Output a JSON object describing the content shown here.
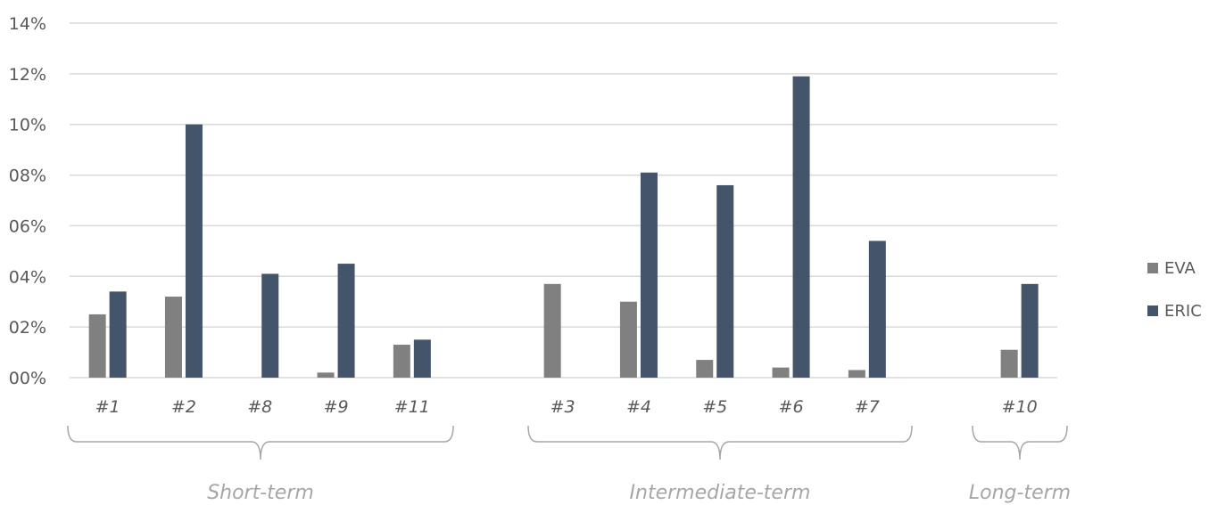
{
  "chart_data": {
    "type": "bar",
    "title": "",
    "xlabel": "",
    "ylabel": "",
    "ylim": [
      0,
      0.14
    ],
    "y_tick_values": [
      0,
      0.02,
      0.04,
      0.06,
      0.08,
      0.1,
      0.12,
      0.14
    ],
    "y_tick_labels": [
      "00%",
      "02%",
      "04%",
      "06%",
      "08%",
      "10%",
      "12%",
      "14%"
    ],
    "grid": true,
    "legend_position": "right",
    "categories": [
      "#1",
      "#2",
      "#8",
      "#9",
      "#11",
      "#3",
      "#4",
      "#5",
      "#6",
      "#7",
      "#10"
    ],
    "category_groups": [
      {
        "label": "Short-term",
        "categories": [
          "#1",
          "#2",
          "#8",
          "#9",
          "#11"
        ]
      },
      {
        "label": "Intermediate-term",
        "categories": [
          "#3",
          "#4",
          "#5",
          "#6",
          "#7"
        ]
      },
      {
        "label": "Long-term",
        "categories": [
          "#10"
        ]
      }
    ],
    "series": [
      {
        "name": "EVA",
        "color": "#808080",
        "values": [
          0.025,
          0.032,
          0.0,
          0.002,
          0.013,
          0.037,
          0.03,
          0.007,
          0.004,
          0.003,
          0.011
        ]
      },
      {
        "name": "ERIC",
        "color": "#44546a",
        "values": [
          0.034,
          0.1,
          0.041,
          0.045,
          0.015,
          0.0,
          0.081,
          0.076,
          0.119,
          0.054,
          0.037
        ]
      }
    ]
  }
}
